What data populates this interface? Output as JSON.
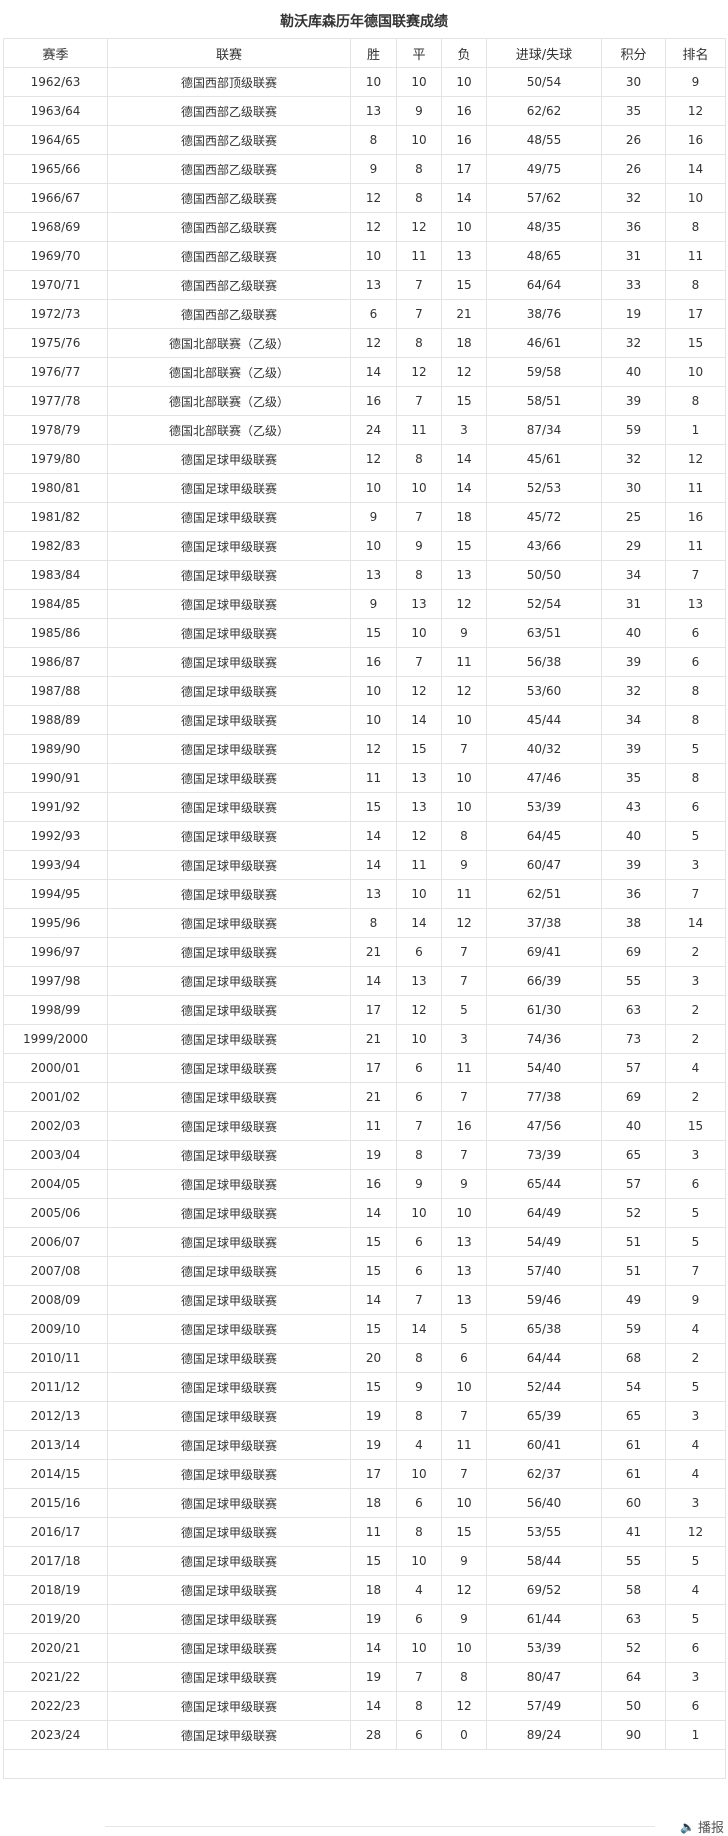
{
  "title": "勒沃库森历年德国联赛成绩",
  "columns": [
    "赛季",
    "联赛",
    "胜",
    "平",
    "负",
    "进球/失球",
    "积分",
    "排名"
  ],
  "rows": [
    [
      "1962/63",
      "德国西部顶级联赛",
      "10",
      "10",
      "10",
      "50/54",
      "30",
      "9"
    ],
    [
      "1963/64",
      "德国西部乙级联赛",
      "13",
      "9",
      "16",
      "62/62",
      "35",
      "12"
    ],
    [
      "1964/65",
      "德国西部乙级联赛",
      "8",
      "10",
      "16",
      "48/55",
      "26",
      "16"
    ],
    [
      "1965/66",
      "德国西部乙级联赛",
      "9",
      "8",
      "17",
      "49/75",
      "26",
      "14"
    ],
    [
      "1966/67",
      "德国西部乙级联赛",
      "12",
      "8",
      "14",
      "57/62",
      "32",
      "10"
    ],
    [
      "1968/69",
      "德国西部乙级联赛",
      "12",
      "12",
      "10",
      "48/35",
      "36",
      "8"
    ],
    [
      "1969/70",
      "德国西部乙级联赛",
      "10",
      "11",
      "13",
      "48/65",
      "31",
      "11"
    ],
    [
      "1970/71",
      "德国西部乙级联赛",
      "13",
      "7",
      "15",
      "64/64",
      "33",
      "8"
    ],
    [
      "1972/73",
      "德国西部乙级联赛",
      "6",
      "7",
      "21",
      "38/76",
      "19",
      "17"
    ],
    [
      "1975/76",
      "德国北部联赛（乙级）",
      "12",
      "8",
      "18",
      "46/61",
      "32",
      "15"
    ],
    [
      "1976/77",
      "德国北部联赛（乙级）",
      "14",
      "12",
      "12",
      "59/58",
      "40",
      "10"
    ],
    [
      "1977/78",
      "德国北部联赛（乙级）",
      "16",
      "7",
      "15",
      "58/51",
      "39",
      "8"
    ],
    [
      "1978/79",
      "德国北部联赛（乙级）",
      "24",
      "11",
      "3",
      "87/34",
      "59",
      "1"
    ],
    [
      "1979/80",
      "德国足球甲级联赛",
      "12",
      "8",
      "14",
      "45/61",
      "32",
      "12"
    ],
    [
      "1980/81",
      "德国足球甲级联赛",
      "10",
      "10",
      "14",
      "52/53",
      "30",
      "11"
    ],
    [
      "1981/82",
      "德国足球甲级联赛",
      "9",
      "7",
      "18",
      "45/72",
      "25",
      "16"
    ],
    [
      "1982/83",
      "德国足球甲级联赛",
      "10",
      "9",
      "15",
      "43/66",
      "29",
      "11"
    ],
    [
      "1983/84",
      "德国足球甲级联赛",
      "13",
      "8",
      "13",
      "50/50",
      "34",
      "7"
    ],
    [
      "1984/85",
      "德国足球甲级联赛",
      "9",
      "13",
      "12",
      "52/54",
      "31",
      "13"
    ],
    [
      "1985/86",
      "德国足球甲级联赛",
      "15",
      "10",
      "9",
      "63/51",
      "40",
      "6"
    ],
    [
      "1986/87",
      "德国足球甲级联赛",
      "16",
      "7",
      "11",
      "56/38",
      "39",
      "6"
    ],
    [
      "1987/88",
      "德国足球甲级联赛",
      "10",
      "12",
      "12",
      "53/60",
      "32",
      "8"
    ],
    [
      "1988/89",
      "德国足球甲级联赛",
      "10",
      "14",
      "10",
      "45/44",
      "34",
      "8"
    ],
    [
      "1989/90",
      "德国足球甲级联赛",
      "12",
      "15",
      "7",
      "40/32",
      "39",
      "5"
    ],
    [
      "1990/91",
      "德国足球甲级联赛",
      "11",
      "13",
      "10",
      "47/46",
      "35",
      "8"
    ],
    [
      "1991/92",
      "德国足球甲级联赛",
      "15",
      "13",
      "10",
      "53/39",
      "43",
      "6"
    ],
    [
      "1992/93",
      "德国足球甲级联赛",
      "14",
      "12",
      "8",
      "64/45",
      "40",
      "5"
    ],
    [
      "1993/94",
      "德国足球甲级联赛",
      "14",
      "11",
      "9",
      "60/47",
      "39",
      "3"
    ],
    [
      "1994/95",
      "德国足球甲级联赛",
      "13",
      "10",
      "11",
      "62/51",
      "36",
      "7"
    ],
    [
      "1995/96",
      "德国足球甲级联赛",
      "8",
      "14",
      "12",
      "37/38",
      "38",
      "14"
    ],
    [
      "1996/97",
      "德国足球甲级联赛",
      "21",
      "6",
      "7",
      "69/41",
      "69",
      "2"
    ],
    [
      "1997/98",
      "德国足球甲级联赛",
      "14",
      "13",
      "7",
      "66/39",
      "55",
      "3"
    ],
    [
      "1998/99",
      "德国足球甲级联赛",
      "17",
      "12",
      "5",
      "61/30",
      "63",
      "2"
    ],
    [
      "1999/2000",
      "德国足球甲级联赛",
      "21",
      "10",
      "3",
      "74/36",
      "73",
      "2"
    ],
    [
      "2000/01",
      "德国足球甲级联赛",
      "17",
      "6",
      "11",
      "54/40",
      "57",
      "4"
    ],
    [
      "2001/02",
      "德国足球甲级联赛",
      "21",
      "6",
      "7",
      "77/38",
      "69",
      "2"
    ],
    [
      "2002/03",
      "德国足球甲级联赛",
      "11",
      "7",
      "16",
      "47/56",
      "40",
      "15"
    ],
    [
      "2003/04",
      "德国足球甲级联赛",
      "19",
      "8",
      "7",
      "73/39",
      "65",
      "3"
    ],
    [
      "2004/05",
      "德国足球甲级联赛",
      "16",
      "9",
      "9",
      "65/44",
      "57",
      "6"
    ],
    [
      "2005/06",
      "德国足球甲级联赛",
      "14",
      "10",
      "10",
      "64/49",
      "52",
      "5"
    ],
    [
      "2006/07",
      "德国足球甲级联赛",
      "15",
      "6",
      "13",
      "54/49",
      "51",
      "5"
    ],
    [
      "2007/08",
      "德国足球甲级联赛",
      "15",
      "6",
      "13",
      "57/40",
      "51",
      "7"
    ],
    [
      "2008/09",
      "德国足球甲级联赛",
      "14",
      "7",
      "13",
      "59/46",
      "49",
      "9"
    ],
    [
      "2009/10",
      "德国足球甲级联赛",
      "15",
      "14",
      "5",
      "65/38",
      "59",
      "4"
    ],
    [
      "2010/11",
      "德国足球甲级联赛",
      "20",
      "8",
      "6",
      "64/44",
      "68",
      "2"
    ],
    [
      "2011/12",
      "德国足球甲级联赛",
      "15",
      "9",
      "10",
      "52/44",
      "54",
      "5"
    ],
    [
      "2012/13",
      "德国足球甲级联赛",
      "19",
      "8",
      "7",
      "65/39",
      "65",
      "3"
    ],
    [
      "2013/14",
      "德国足球甲级联赛",
      "19",
      "4",
      "11",
      "60/41",
      "61",
      "4"
    ],
    [
      "2014/15",
      "德国足球甲级联赛",
      "17",
      "10",
      "7",
      "62/37",
      "61",
      "4"
    ],
    [
      "2015/16",
      "德国足球甲级联赛",
      "18",
      "6",
      "10",
      "56/40",
      "60",
      "3"
    ],
    [
      "2016/17",
      "德国足球甲级联赛",
      "11",
      "8",
      "15",
      "53/55",
      "41",
      "12"
    ],
    [
      "2017/18",
      "德国足球甲级联赛",
      "15",
      "10",
      "9",
      "58/44",
      "55",
      "5"
    ],
    [
      "2018/19",
      "德国足球甲级联赛",
      "18",
      "4",
      "12",
      "69/52",
      "58",
      "4"
    ],
    [
      "2019/20",
      "德国足球甲级联赛",
      "19",
      "6",
      "9",
      "61/44",
      "63",
      "5"
    ],
    [
      "2020/21",
      "德国足球甲级联赛",
      "14",
      "10",
      "10",
      "53/39",
      "52",
      "6"
    ],
    [
      "2021/22",
      "德国足球甲级联赛",
      "19",
      "7",
      "8",
      "80/47",
      "64",
      "3"
    ],
    [
      "2022/23",
      "德国足球甲级联赛",
      "14",
      "8",
      "12",
      "57/49",
      "50",
      "6"
    ],
    [
      "2023/24",
      "德国足球甲级联赛",
      "28",
      "6",
      "0",
      "89/24",
      "90",
      "1"
    ]
  ],
  "footer": {
    "report_label": "播报",
    "report_icon": "speaker-icon"
  }
}
